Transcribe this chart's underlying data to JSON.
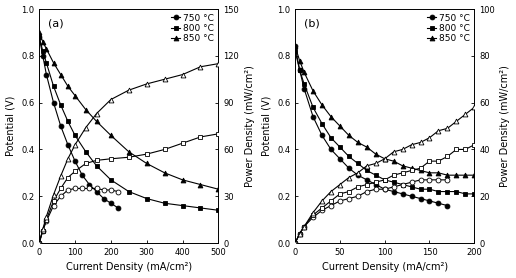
{
  "panel_a": {
    "label": "(a)",
    "xlabel": "Current Density (mA/cm²)",
    "ylabel_left": "Potential (V)",
    "ylabel_right": "Power Density (mW/cm²)",
    "xlim": [
      0,
      500
    ],
    "ylim_left": [
      0,
      1.0
    ],
    "ylim_right": [
      0,
      150
    ],
    "xticks": [
      0,
      100,
      200,
      300,
      400,
      500
    ],
    "yticks_left": [
      0,
      0.2,
      0.4,
      0.6,
      0.8,
      1.0
    ],
    "yticks_right": [
      0,
      30,
      60,
      90,
      120,
      150
    ],
    "series": [
      {
        "temp": "750 °C",
        "marker": "o",
        "iv_x": [
          0,
          10,
          20,
          40,
          60,
          80,
          100,
          120,
          140,
          160,
          180,
          200,
          220
        ],
        "iv_y": [
          0.88,
          0.8,
          0.72,
          0.6,
          0.5,
          0.42,
          0.35,
          0.29,
          0.25,
          0.22,
          0.19,
          0.17,
          0.15
        ],
        "pw_x": [
          0,
          10,
          20,
          40,
          60,
          80,
          100,
          120,
          140,
          160,
          180,
          200,
          220
        ],
        "pw_y": [
          0,
          8,
          14,
          24,
          30,
          34,
          35,
          35,
          35,
          35,
          34,
          34,
          33
        ]
      },
      {
        "temp": "800 °C",
        "marker": "s",
        "iv_x": [
          0,
          10,
          20,
          40,
          60,
          80,
          100,
          130,
          160,
          200,
          250,
          300,
          350,
          400,
          450,
          500
        ],
        "iv_y": [
          0.88,
          0.82,
          0.77,
          0.67,
          0.59,
          0.52,
          0.46,
          0.39,
          0.33,
          0.27,
          0.22,
          0.19,
          0.17,
          0.16,
          0.15,
          0.14
        ],
        "pw_x": [
          0,
          10,
          20,
          40,
          60,
          80,
          100,
          130,
          160,
          200,
          250,
          300,
          350,
          400,
          450,
          500
        ],
        "pw_y": [
          0,
          8,
          15,
          27,
          35,
          42,
          46,
          51,
          53,
          54,
          55,
          57,
          60,
          64,
          68,
          70
        ]
      },
      {
        "temp": "850 °C",
        "marker": "^",
        "iv_x": [
          0,
          10,
          20,
          40,
          60,
          80,
          100,
          130,
          160,
          200,
          250,
          300,
          350,
          400,
          450,
          500
        ],
        "iv_y": [
          0.9,
          0.86,
          0.83,
          0.77,
          0.72,
          0.67,
          0.63,
          0.57,
          0.52,
          0.46,
          0.39,
          0.34,
          0.3,
          0.27,
          0.25,
          0.23
        ],
        "pw_x": [
          0,
          10,
          20,
          40,
          60,
          80,
          100,
          130,
          160,
          200,
          250,
          300,
          350,
          400,
          450,
          500
        ],
        "pw_y": [
          0,
          9,
          17,
          31,
          43,
          54,
          63,
          74,
          83,
          92,
          98,
          102,
          105,
          108,
          113,
          115
        ]
      }
    ]
  },
  "panel_b": {
    "label": "(b)",
    "xlabel": "Current Density (mA/cm²)",
    "ylabel_left": "Potential (V)",
    "ylabel_right": "Power Density (mW/cm²)",
    "xlim": [
      0,
      200
    ],
    "ylim_left": [
      0,
      1.0
    ],
    "ylim_right": [
      0,
      100
    ],
    "xticks": [
      0,
      50,
      100,
      150,
      200
    ],
    "yticks_left": [
      0,
      0.2,
      0.4,
      0.6,
      0.8,
      1.0
    ],
    "yticks_right": [
      0,
      20,
      40,
      60,
      80,
      100
    ],
    "series": [
      {
        "temp": "750 °C",
        "marker": "o",
        "iv_x": [
          0,
          5,
          10,
          20,
          30,
          40,
          50,
          60,
          70,
          80,
          90,
          100,
          110,
          120,
          130,
          140,
          150,
          160,
          170
        ],
        "iv_y": [
          0.84,
          0.74,
          0.66,
          0.54,
          0.46,
          0.4,
          0.36,
          0.32,
          0.29,
          0.27,
          0.25,
          0.23,
          0.22,
          0.21,
          0.2,
          0.19,
          0.18,
          0.17,
          0.16
        ],
        "pw_x": [
          0,
          5,
          10,
          20,
          30,
          40,
          50,
          60,
          70,
          80,
          90,
          100,
          110,
          120,
          130,
          140,
          150,
          160,
          170
        ],
        "pw_y": [
          0,
          4,
          7,
          11,
          14,
          16,
          18,
          19,
          20,
          22,
          23,
          23,
          24,
          25,
          26,
          27,
          27,
          27,
          27
        ]
      },
      {
        "temp": "800 °C",
        "marker": "s",
        "iv_x": [
          0,
          5,
          10,
          20,
          30,
          40,
          50,
          60,
          70,
          80,
          90,
          100,
          110,
          120,
          130,
          140,
          150,
          160,
          170,
          180,
          190,
          200
        ],
        "iv_y": [
          0.82,
          0.74,
          0.68,
          0.58,
          0.51,
          0.45,
          0.41,
          0.37,
          0.34,
          0.31,
          0.29,
          0.27,
          0.26,
          0.25,
          0.24,
          0.23,
          0.23,
          0.22,
          0.22,
          0.22,
          0.21,
          0.21
        ],
        "pw_x": [
          0,
          5,
          10,
          20,
          30,
          40,
          50,
          60,
          70,
          80,
          90,
          100,
          110,
          120,
          130,
          140,
          150,
          160,
          170,
          180,
          190,
          200
        ],
        "pw_y": [
          0,
          4,
          7,
          12,
          15,
          18,
          21,
          22,
          24,
          25,
          26,
          27,
          29,
          30,
          31,
          32,
          35,
          35,
          37,
          40,
          40,
          42
        ]
      },
      {
        "temp": "850 °C",
        "marker": "^",
        "iv_x": [
          0,
          5,
          10,
          20,
          30,
          40,
          50,
          60,
          70,
          80,
          90,
          100,
          110,
          120,
          130,
          140,
          150,
          160,
          170,
          180,
          190,
          200
        ],
        "iv_y": [
          0.84,
          0.78,
          0.73,
          0.65,
          0.59,
          0.54,
          0.5,
          0.46,
          0.43,
          0.41,
          0.38,
          0.36,
          0.35,
          0.33,
          0.32,
          0.31,
          0.3,
          0.3,
          0.29,
          0.29,
          0.29,
          0.29
        ],
        "pw_x": [
          0,
          5,
          10,
          20,
          30,
          40,
          50,
          60,
          70,
          80,
          90,
          100,
          110,
          120,
          130,
          140,
          150,
          160,
          170,
          180,
          190,
          200
        ],
        "pw_y": [
          0,
          4,
          7,
          13,
          18,
          22,
          25,
          28,
          30,
          33,
          34,
          36,
          39,
          40,
          42,
          43,
          45,
          48,
          49,
          52,
          55,
          58
        ]
      }
    ]
  },
  "line_color": "#000000",
  "marker_size": 3.5,
  "font_size": 7,
  "label_font_size": 7,
  "tick_font_size": 6
}
